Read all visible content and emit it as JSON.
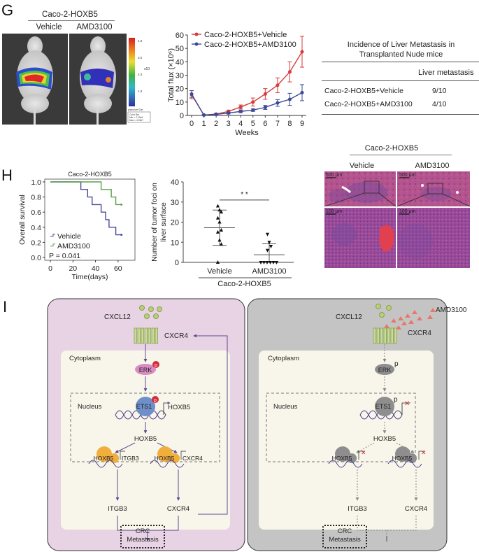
{
  "panels": {
    "G": {
      "letter": "G",
      "imaging": {
        "group_title": "Caco-2-HOXB5",
        "conditions": [
          "Vehicle",
          "AMD3100"
        ],
        "colorbar": {
          "ticks": [
            "4.0",
            "3.0",
            "2.0",
            "1.0"
          ],
          "unit": "x10^7",
          "unit_label": "x10",
          "unit_exp": "7",
          "caption": "p/sec/cm^2/sr",
          "legend_lines": [
            "Color Bar",
            "Min = 2.12e6",
            "Max = 4.26e7"
          ]
        }
      },
      "table": {
        "title_line1": "Incidence of Liver Metastasis in",
        "title_line2": "Transplanted Nude mice",
        "column_header": "Liver metastasis",
        "rows": [
          {
            "group": "Caco-2-HOXB5+Vehicle",
            "value": "9/10"
          },
          {
            "group": "Caco-2-HOXB5+AMD3100",
            "value": "4/10"
          }
        ]
      }
    },
    "H": {
      "letter": "H",
      "histology": {
        "group_title": "Caco-2-HOXB5",
        "conditions": [
          "Vehicle",
          "AMD3100"
        ],
        "scale_bars": [
          "500 μm",
          "500 μm",
          "100 μm",
          "100 μm"
        ]
      }
    },
    "I": {
      "letter": "I",
      "left_cell": {
        "ligand": "CXCL12",
        "receptor": "CXCR4",
        "cytoplasm": "Cytoplasm",
        "nucleus": "Nucleus",
        "erk": "ERK",
        "phospho": "p",
        "ets1": "ETS1",
        "promoter_gene": "HOXB5",
        "hoxb5": "HOXB5",
        "target1": "ITGB3",
        "target2": "CXCR4",
        "out1": "ITGB3",
        "out2": "CXCR4",
        "outcome_line1": "CRC",
        "outcome_line2": "Metastasis"
      },
      "right_cell": {
        "ligand": "CXCL12",
        "inhibitor": "AMD3100",
        "receptor": "CXCR4",
        "cytoplasm": "Cytoplasm",
        "nucleus": "Nucleus",
        "erk": "ERK",
        "phospho": "p",
        "ets1": "ETS1",
        "hoxb5": "HOXB5",
        "out1": "ITGB3",
        "out2": "CXCR4",
        "outcome_line1": "CRC",
        "outcome_line2": "Metastasis"
      },
      "colors": {
        "left_bg": "#e8d3e4",
        "right_bg": "#c4c4c4",
        "inner_bg": "#f8f6ea",
        "erk_active": "#d98bc4",
        "ets1_active": "#6f8fc8",
        "hoxb5_active": "#f0ae3c",
        "inactive": "#8e8e8e",
        "phospho": "#d42a3a",
        "arrow": "#5b4a8c",
        "ligand": "#a8c46a",
        "inhibitor": "#e8776a"
      }
    }
  },
  "chart_data": [
    {
      "type": "line",
      "panel": "G",
      "title": "",
      "xlabel": "Weeks",
      "ylabel": "Total flux (×10⁶)",
      "x": [
        0,
        1,
        2,
        3,
        4,
        5,
        6,
        7,
        8,
        9
      ],
      "xlim": [
        0,
        9
      ],
      "ylim": [
        0,
        60
      ],
      "yticks": [
        0,
        10,
        20,
        30,
        40,
        50,
        60
      ],
      "legend": "top-left",
      "series": [
        {
          "name": "Caco-2-HOXB5+Vehicle",
          "color": "#d93a3a",
          "values": [
            15.5,
            0.3,
            1.0,
            3.0,
            6.3,
            10.0,
            16.0,
            22.5,
            32.5,
            47.5
          ],
          "errors": [
            3.0,
            0.3,
            0.5,
            1.0,
            1.5,
            3.0,
            4.0,
            5.5,
            7.5,
            11.5
          ]
        },
        {
          "name": "Caco-2-HOXB5+AMD3100",
          "color": "#3a4a96",
          "values": [
            16.0,
            0.3,
            0.8,
            1.8,
            3.0,
            4.0,
            6.0,
            9.3,
            12.0,
            17.0
          ],
          "errors": [
            2.5,
            0.3,
            0.5,
            0.7,
            1.0,
            1.0,
            1.5,
            2.5,
            4.5,
            6.0
          ]
        }
      ]
    },
    {
      "type": "line",
      "subtype": "kaplan-meier",
      "panel": "H",
      "title": "Caco-2-HOXB5",
      "xlabel": "Time(days)",
      "ylabel": "Overall survival",
      "xlim": [
        -5,
        75
      ],
      "ylim": [
        0,
        1.0
      ],
      "xticks": [
        0,
        20,
        40,
        60
      ],
      "yticks": [
        "0.0",
        "0.2",
        "0.4",
        "0.6",
        "0.8",
        "1.0"
      ],
      "annotation": "P = 0.041",
      "legend": "bottom-left",
      "series": [
        {
          "name": "Vehicle",
          "color": "#4b4a9a",
          "steps": [
            [
              0,
              1.0
            ],
            [
              27,
              0.9
            ],
            [
              33,
              0.8
            ],
            [
              37,
              0.7
            ],
            [
              45,
              0.6
            ],
            [
              49,
              0.5
            ],
            [
              52,
              0.4
            ],
            [
              58,
              0.3
            ],
            [
              63,
              0.3
            ]
          ]
        },
        {
          "name": "AMD3100",
          "color": "#5aa04a",
          "steps": [
            [
              0,
              1.0
            ],
            [
              45,
              0.9
            ],
            [
              54,
              0.8
            ],
            [
              58,
              0.7
            ],
            [
              63,
              0.7
            ]
          ]
        }
      ]
    },
    {
      "type": "scatter",
      "panel": "H",
      "ylabel": "Number of tumor foci on liver surface",
      "ylabel_line1": "Number of tumor foci on",
      "ylabel_line2": "liver surface",
      "categories": [
        "Vehicle",
        "AMD3100"
      ],
      "group_label": "Caco-2-HOXB5",
      "ylim": [
        0,
        40
      ],
      "yticks": [
        0,
        10,
        20,
        30,
        40
      ],
      "significance": "* *",
      "series": [
        {
          "name": "Vehicle",
          "marker": "triangle-up",
          "values": [
            28,
            26,
            25,
            22,
            20,
            16,
            15,
            11,
            9,
            0
          ],
          "mean": 17.2,
          "sd_low": 8.5,
          "sd_high": 26
        },
        {
          "name": "AMD3100",
          "marker": "triangle-down",
          "values": [
            14,
            10,
            8,
            6,
            0,
            0,
            0,
            0,
            0,
            0
          ],
          "mean": 3.8,
          "sd_low": 0,
          "sd_high": 9.2
        }
      ]
    }
  ]
}
